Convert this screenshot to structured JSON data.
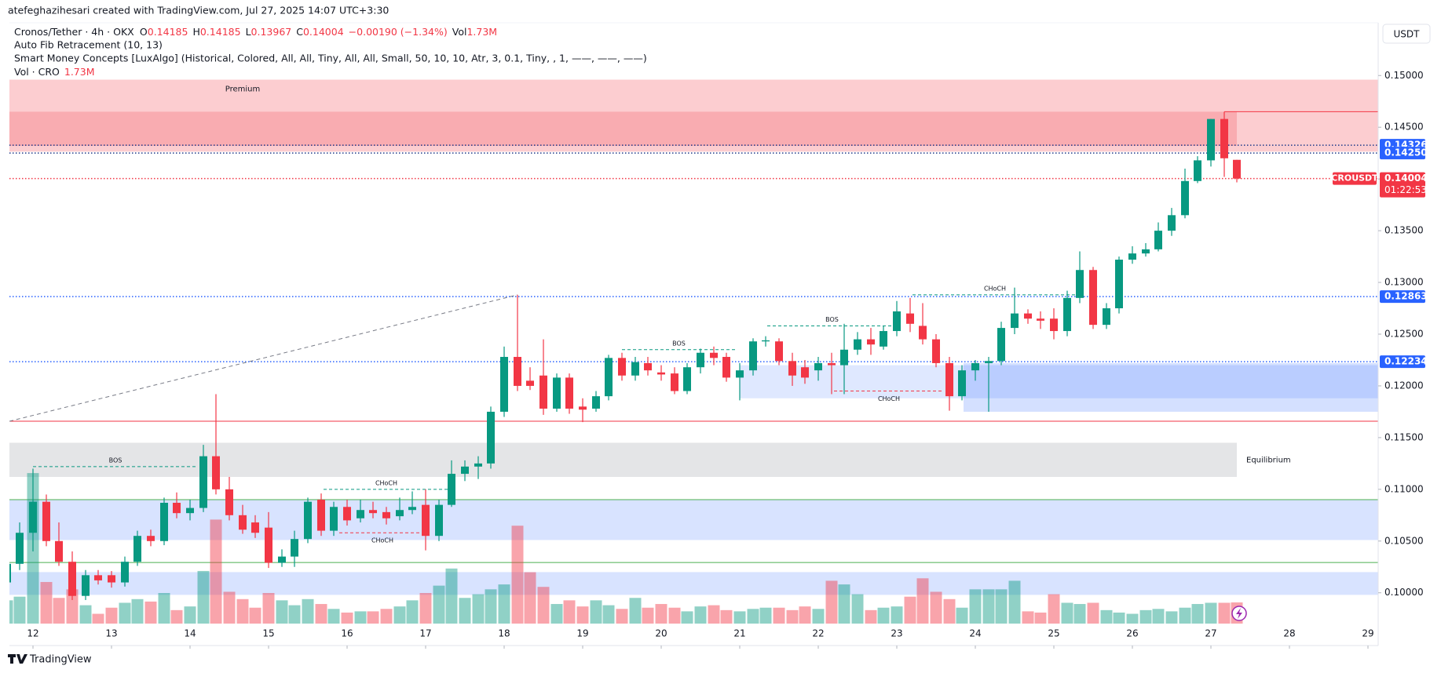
{
  "chart_data": {
    "type": "candlestick",
    "header": {
      "credit": "atefeghazihesari created with TradingView.com, Jul 27, 2025 14:07 UTC+3:30",
      "symbol": "Cronos/Tether · 4h · OKX",
      "ohlc": [
        {
          "label": "O",
          "value": 0.14185
        },
        {
          "label": "H",
          "value": 0.14185
        },
        {
          "label": "L",
          "value": 0.13967
        },
        {
          "label": "C",
          "value": 0.14004
        }
      ],
      "change": "−0.00190 (−1.34%)",
      "volume": {
        "label": "Vol",
        "value": "1.73M"
      },
      "indicators": [
        "Auto Fib Retracement (10, 13)",
        "Smart Money Concepts [LuxAlgo] (Historical, Colored, All, All, Tiny, All, All, Small, 50, 10, 10, Atr, 3, 0.1, Tiny, , 1, ——, ——, ——)"
      ],
      "volume_indicator": {
        "label": "Vol · CRO",
        "value": "1.73M"
      },
      "currency_button": "USDT",
      "brand": "TradingView"
    },
    "up_color": "#089981",
    "down_color": "#f23645",
    "xlim": [
      11.7,
      29.13
    ],
    "ylim": [
      0.0949,
      0.1551
    ],
    "xticks": [
      12,
      13,
      14,
      15,
      16,
      17,
      18,
      19,
      20,
      21,
      22,
      23,
      24,
      25,
      26,
      27,
      28,
      29
    ],
    "yticks": [
      {
        "value": 0.1,
        "label": "0.10000"
      },
      {
        "value": 0.105,
        "label": "0.10500"
      },
      {
        "value": 0.11,
        "label": "0.11000"
      },
      {
        "value": 0.115,
        "label": "0.11500"
      },
      {
        "value": 0.12,
        "label": "0.12000"
      },
      {
        "value": 0.125,
        "label": "0.12500"
      },
      {
        "value": 0.13,
        "label": "0.13000"
      },
      {
        "value": 0.135,
        "label": "0.13500"
      },
      {
        "value": 0.14,
        "label": "0.14000"
      },
      {
        "value": 0.145,
        "label": "0.14500"
      },
      {
        "value": 0.15,
        "label": "0.15000"
      }
    ],
    "price_labels": [
      {
        "value": 0.14326,
        "label": "0.14326",
        "color": "#2962ff"
      },
      {
        "value": 0.1425,
        "label": "0.14250",
        "color": "#2962ff"
      },
      {
        "value": 0.12863,
        "label": "0.12863",
        "color": "#2962ff"
      },
      {
        "value": 0.12234,
        "label": "0.12234",
        "color": "#2962ff"
      }
    ],
    "current": {
      "symbol": "CROUSDT",
      "value": 0.14004,
      "label": "0.14004",
      "countdown": "01:22:53",
      "color": "#f23645"
    },
    "zones": [
      {
        "t0": 11.7,
        "t1": 29.13,
        "top": 0.1496,
        "bottom": 0.14264,
        "color": "rgba(242,54,69,0.25)",
        "label": "Premium"
      },
      {
        "t0": 11.7,
        "t1": 27.33,
        "top": 0.1465,
        "bottom": 0.1432,
        "color": "rgba(242,54,69,0.22)"
      },
      {
        "t0": 11.7,
        "t1": 27.33,
        "top": 0.1145,
        "bottom": 0.1112,
        "color": "rgba(120,123,134,0.2)",
        "label": "Equilibrium"
      },
      {
        "t0": 11.7,
        "t1": 29.13,
        "top": 0.109,
        "bottom": 0.1051,
        "color": "rgba(41,98,255,0.18)"
      },
      {
        "t0": 11.7,
        "t1": 29.13,
        "top": 0.102,
        "bottom": 0.0998,
        "color": "rgba(41,98,255,0.18)"
      },
      {
        "t0": 21.0,
        "t1": 29.13,
        "top": 0.122,
        "bottom": 0.1188,
        "color": "rgba(41,98,255,0.15)"
      },
      {
        "t0": 23.85,
        "t1": 29.13,
        "top": 0.1222,
        "bottom": 0.1175,
        "color": "rgba(41,98,255,0.2)"
      }
    ],
    "levels": [
      {
        "price": 0.11658,
        "color": "#f23645",
        "style": "solid"
      },
      {
        "price": 0.109,
        "color": "#4caf50",
        "style": "solid"
      },
      {
        "price": 0.10293,
        "color": "#4caf50",
        "style": "solid"
      },
      {
        "price": 0.12863,
        "color": "#2962ff",
        "style": "dotted"
      },
      {
        "price": 0.12234,
        "color": "#2962ff",
        "style": "dotted"
      },
      {
        "price": 0.14004,
        "color": "#f23645",
        "style": "dotted"
      },
      {
        "price": 0.14326,
        "color": "#1e3a8a",
        "style": "dotted"
      },
      {
        "price": 0.1425,
        "color": "#1e3a8a",
        "style": "dotted"
      },
      {
        "price": 0.1465,
        "color": "#f23645",
        "style": "solid",
        "t0": 27.17
      }
    ],
    "fib_line": {
      "t0": 11.7,
      "p0": 0.11658,
      "t1": 18.17,
      "p1": 0.1288
    },
    "structures": [
      {
        "label": "BOS",
        "t0": 12.0,
        "t1": 14.1,
        "price": 0.1122,
        "color": "#089981"
      },
      {
        "label": "CHoCH",
        "t0": 15.7,
        "t1": 17.3,
        "price": 0.11,
        "color": "#089981"
      },
      {
        "label": "CHoCH",
        "t0": 15.9,
        "t1": 17.0,
        "price": 0.1058,
        "color": "#f23645"
      },
      {
        "label": "BOS",
        "t0": 19.5,
        "t1": 20.95,
        "price": 0.1235,
        "color": "#089981"
      },
      {
        "label": "BOS",
        "t0": 21.35,
        "t1": 23.0,
        "price": 0.1258,
        "color": "#089981"
      },
      {
        "label": "CHoCH",
        "t0": 22.2,
        "t1": 23.6,
        "price": 0.1195,
        "color": "#f23645"
      },
      {
        "label": "CHoCH",
        "t0": 23.2,
        "t1": 25.3,
        "price": 0.1288,
        "color": "#089981"
      }
    ],
    "candles": [
      {
        "t": 11.67,
        "o": 0.101,
        "h": 0.1032,
        "l": 0.1005,
        "c": 0.1028,
        "v": 1.9
      },
      {
        "t": 11.83,
        "o": 0.1028,
        "h": 0.1068,
        "l": 0.1022,
        "c": 0.1058,
        "v": 2.2
      },
      {
        "t": 12.0,
        "o": 0.1058,
        "h": 0.112,
        "l": 0.104,
        "c": 0.1088,
        "v": 12.3
      },
      {
        "t": 12.17,
        "o": 0.1088,
        "h": 0.1095,
        "l": 0.1045,
        "c": 0.105,
        "v": 3.4
      },
      {
        "t": 12.33,
        "o": 0.105,
        "h": 0.1068,
        "l": 0.1026,
        "c": 0.103,
        "v": 2.1
      },
      {
        "t": 12.5,
        "o": 0.103,
        "h": 0.104,
        "l": 0.0993,
        "c": 0.0997,
        "v": 2.8
      },
      {
        "t": 12.67,
        "o": 0.0997,
        "h": 0.1022,
        "l": 0.0993,
        "c": 0.1017,
        "v": 1.5
      },
      {
        "t": 12.83,
        "o": 0.1017,
        "h": 0.1022,
        "l": 0.1008,
        "c": 0.1012,
        "v": 0.8
      },
      {
        "t": 13.0,
        "o": 0.1017,
        "h": 0.1021,
        "l": 0.1005,
        "c": 0.101,
        "v": 1.3
      },
      {
        "t": 13.17,
        "o": 0.101,
        "h": 0.1035,
        "l": 0.1006,
        "c": 0.103,
        "v": 1.7
      },
      {
        "t": 13.33,
        "o": 0.103,
        "h": 0.106,
        "l": 0.1026,
        "c": 0.1055,
        "v": 2.0
      },
      {
        "t": 13.5,
        "o": 0.1055,
        "h": 0.1061,
        "l": 0.1045,
        "c": 0.105,
        "v": 1.8
      },
      {
        "t": 13.67,
        "o": 0.105,
        "h": 0.1092,
        "l": 0.1046,
        "c": 0.1087,
        "v": 2.5
      },
      {
        "t": 13.83,
        "o": 0.1087,
        "h": 0.1097,
        "l": 0.1072,
        "c": 0.1077,
        "v": 1.1
      },
      {
        "t": 14.0,
        "o": 0.1077,
        "h": 0.109,
        "l": 0.107,
        "c": 0.1082,
        "v": 1.4
      },
      {
        "t": 14.17,
        "o": 0.1082,
        "h": 0.1143,
        "l": 0.1078,
        "c": 0.1132,
        "v": 4.3
      },
      {
        "t": 14.33,
        "o": 0.1132,
        "h": 0.1192,
        "l": 0.1095,
        "c": 0.11,
        "v": 8.5
      },
      {
        "t": 14.5,
        "o": 0.11,
        "h": 0.1112,
        "l": 0.107,
        "c": 0.1075,
        "v": 2.6
      },
      {
        "t": 14.67,
        "o": 0.1075,
        "h": 0.1085,
        "l": 0.1057,
        "c": 0.1061,
        "v": 2.0
      },
      {
        "t": 14.83,
        "o": 0.1068,
        "h": 0.1075,
        "l": 0.1053,
        "c": 0.1058,
        "v": 1.3
      },
      {
        "t": 15.0,
        "o": 0.1063,
        "h": 0.1078,
        "l": 0.1024,
        "c": 0.1029,
        "v": 2.5
      },
      {
        "t": 15.17,
        "o": 0.1029,
        "h": 0.1042,
        "l": 0.1025,
        "c": 0.1035,
        "v": 1.9
      },
      {
        "t": 15.33,
        "o": 0.1035,
        "h": 0.106,
        "l": 0.1025,
        "c": 0.1052,
        "v": 1.5
      },
      {
        "t": 15.5,
        "o": 0.1052,
        "h": 0.1092,
        "l": 0.1048,
        "c": 0.1088,
        "v": 2.0
      },
      {
        "t": 15.67,
        "o": 0.109,
        "h": 0.1096,
        "l": 0.1055,
        "c": 0.106,
        "v": 1.6
      },
      {
        "t": 15.83,
        "o": 0.106,
        "h": 0.1088,
        "l": 0.1055,
        "c": 0.1083,
        "v": 1.2
      },
      {
        "t": 16.0,
        "o": 0.1083,
        "h": 0.109,
        "l": 0.1065,
        "c": 0.107,
        "v": 0.9
      },
      {
        "t": 16.17,
        "o": 0.1072,
        "h": 0.109,
        "l": 0.1068,
        "c": 0.108,
        "v": 1.0
      },
      {
        "t": 16.33,
        "o": 0.108,
        "h": 0.1088,
        "l": 0.1072,
        "c": 0.1077,
        "v": 1.0
      },
      {
        "t": 16.5,
        "o": 0.1078,
        "h": 0.1083,
        "l": 0.1066,
        "c": 0.1072,
        "v": 1.2
      },
      {
        "t": 16.67,
        "o": 0.1074,
        "h": 0.1092,
        "l": 0.107,
        "c": 0.108,
        "v": 1.4
      },
      {
        "t": 16.83,
        "o": 0.108,
        "h": 0.1098,
        "l": 0.1076,
        "c": 0.1083,
        "v": 1.9
      },
      {
        "t": 17.0,
        "o": 0.1085,
        "h": 0.11,
        "l": 0.1041,
        "c": 0.1055,
        "v": 2.5
      },
      {
        "t": 17.17,
        "o": 0.1055,
        "h": 0.109,
        "l": 0.105,
        "c": 0.1085,
        "v": 3.1
      },
      {
        "t": 17.33,
        "o": 0.1085,
        "h": 0.1128,
        "l": 0.1083,
        "c": 0.1115,
        "v": 4.5
      },
      {
        "t": 17.5,
        "o": 0.1115,
        "h": 0.1128,
        "l": 0.1108,
        "c": 0.1122,
        "v": 2.1
      },
      {
        "t": 17.67,
        "o": 0.1122,
        "h": 0.1132,
        "l": 0.111,
        "c": 0.1125,
        "v": 2.4
      },
      {
        "t": 17.83,
        "o": 0.1125,
        "h": 0.118,
        "l": 0.112,
        "c": 0.1175,
        "v": 2.8
      },
      {
        "t": 18.0,
        "o": 0.1175,
        "h": 0.1238,
        "l": 0.117,
        "c": 0.1228,
        "v": 3.2
      },
      {
        "t": 18.17,
        "o": 0.1228,
        "h": 0.1288,
        "l": 0.1195,
        "c": 0.12,
        "v": 8.0
      },
      {
        "t": 18.33,
        "o": 0.1205,
        "h": 0.1218,
        "l": 0.1196,
        "c": 0.12,
        "v": 4.2
      },
      {
        "t": 18.5,
        "o": 0.121,
        "h": 0.1245,
        "l": 0.1172,
        "c": 0.1178,
        "v": 3.0
      },
      {
        "t": 18.67,
        "o": 0.1178,
        "h": 0.1212,
        "l": 0.1175,
        "c": 0.1208,
        "v": 1.6
      },
      {
        "t": 18.83,
        "o": 0.1208,
        "h": 0.1212,
        "l": 0.1173,
        "c": 0.1178,
        "v": 1.9
      },
      {
        "t": 19.0,
        "o": 0.118,
        "h": 0.1188,
        "l": 0.1165,
        "c": 0.1177,
        "v": 1.4
      },
      {
        "t": 19.17,
        "o": 0.1178,
        "h": 0.1195,
        "l": 0.1175,
        "c": 0.119,
        "v": 1.9
      },
      {
        "t": 19.33,
        "o": 0.119,
        "h": 0.123,
        "l": 0.1186,
        "c": 0.1227,
        "v": 1.5
      },
      {
        "t": 19.5,
        "o": 0.1227,
        "h": 0.1232,
        "l": 0.1205,
        "c": 0.121,
        "v": 1.2
      },
      {
        "t": 19.67,
        "o": 0.121,
        "h": 0.1228,
        "l": 0.1205,
        "c": 0.1223,
        "v": 2.1
      },
      {
        "t": 19.83,
        "o": 0.1222,
        "h": 0.1228,
        "l": 0.121,
        "c": 0.1215,
        "v": 1.3
      },
      {
        "t": 20.0,
        "o": 0.1213,
        "h": 0.122,
        "l": 0.1205,
        "c": 0.1211,
        "v": 1.6
      },
      {
        "t": 20.17,
        "o": 0.1212,
        "h": 0.1218,
        "l": 0.1192,
        "c": 0.1195,
        "v": 1.3
      },
      {
        "t": 20.33,
        "o": 0.1195,
        "h": 0.1222,
        "l": 0.1192,
        "c": 0.1218,
        "v": 1.0
      },
      {
        "t": 20.5,
        "o": 0.1218,
        "h": 0.1236,
        "l": 0.1212,
        "c": 0.1232,
        "v": 1.4
      },
      {
        "t": 20.67,
        "o": 0.1232,
        "h": 0.1238,
        "l": 0.122,
        "c": 0.1227,
        "v": 1.5
      },
      {
        "t": 20.83,
        "o": 0.1228,
        "h": 0.1232,
        "l": 0.1204,
        "c": 0.1208,
        "v": 1.1
      },
      {
        "t": 21.0,
        "o": 0.1208,
        "h": 0.1222,
        "l": 0.1186,
        "c": 0.1215,
        "v": 1.0
      },
      {
        "t": 21.17,
        "o": 0.1215,
        "h": 0.1246,
        "l": 0.121,
        "c": 0.1243,
        "v": 1.2
      },
      {
        "t": 21.33,
        "o": 0.1243,
        "h": 0.1248,
        "l": 0.1238,
        "c": 0.1244,
        "v": 1.3
      },
      {
        "t": 21.5,
        "o": 0.1243,
        "h": 0.1246,
        "l": 0.122,
        "c": 0.1224,
        "v": 1.3
      },
      {
        "t": 21.67,
        "o": 0.1224,
        "h": 0.1232,
        "l": 0.12,
        "c": 0.121,
        "v": 1.1
      },
      {
        "t": 21.83,
        "o": 0.1218,
        "h": 0.1225,
        "l": 0.1202,
        "c": 0.1208,
        "v": 1.4
      },
      {
        "t": 22.0,
        "o": 0.1215,
        "h": 0.1228,
        "l": 0.1205,
        "c": 0.1222,
        "v": 1.2
      },
      {
        "t": 22.17,
        "o": 0.1222,
        "h": 0.1232,
        "l": 0.1192,
        "c": 0.122,
        "v": 3.5
      },
      {
        "t": 22.33,
        "o": 0.122,
        "h": 0.126,
        "l": 0.1192,
        "c": 0.1235,
        "v": 3.2
      },
      {
        "t": 22.5,
        "o": 0.1235,
        "h": 0.1252,
        "l": 0.123,
        "c": 0.1245,
        "v": 2.4
      },
      {
        "t": 22.67,
        "o": 0.1245,
        "h": 0.1256,
        "l": 0.123,
        "c": 0.124,
        "v": 1.1
      },
      {
        "t": 22.83,
        "o": 0.1238,
        "h": 0.1258,
        "l": 0.1235,
        "c": 0.1253,
        "v": 1.3
      },
      {
        "t": 23.0,
        "o": 0.1253,
        "h": 0.1282,
        "l": 0.1248,
        "c": 0.1272,
        "v": 1.4
      },
      {
        "t": 23.17,
        "o": 0.127,
        "h": 0.1285,
        "l": 0.1252,
        "c": 0.126,
        "v": 2.2
      },
      {
        "t": 23.33,
        "o": 0.1258,
        "h": 0.128,
        "l": 0.124,
        "c": 0.1245,
        "v": 3.7
      },
      {
        "t": 23.5,
        "o": 0.1245,
        "h": 0.125,
        "l": 0.1218,
        "c": 0.1222,
        "v": 2.6
      },
      {
        "t": 23.67,
        "o": 0.1222,
        "h": 0.1228,
        "l": 0.1176,
        "c": 0.119,
        "v": 2.0
      },
      {
        "t": 23.83,
        "o": 0.119,
        "h": 0.122,
        "l": 0.1186,
        "c": 0.1215,
        "v": 1.3
      },
      {
        "t": 24.0,
        "o": 0.1215,
        "h": 0.1225,
        "l": 0.1205,
        "c": 0.1222,
        "v": 2.8
      },
      {
        "t": 24.17,
        "o": 0.1222,
        "h": 0.1228,
        "l": 0.1175,
        "c": 0.1224,
        "v": 2.8
      },
      {
        "t": 24.33,
        "o": 0.1224,
        "h": 0.1262,
        "l": 0.122,
        "c": 0.1256,
        "v": 2.8
      },
      {
        "t": 24.5,
        "o": 0.1256,
        "h": 0.1295,
        "l": 0.125,
        "c": 0.127,
        "v": 3.5
      },
      {
        "t": 24.67,
        "o": 0.127,
        "h": 0.1274,
        "l": 0.126,
        "c": 0.1265,
        "v": 1.0
      },
      {
        "t": 24.83,
        "o": 0.1265,
        "h": 0.1272,
        "l": 0.1255,
        "c": 0.1263,
        "v": 0.9
      },
      {
        "t": 25.0,
        "o": 0.1265,
        "h": 0.1275,
        "l": 0.1245,
        "c": 0.1253,
        "v": 2.4
      },
      {
        "t": 25.17,
        "o": 0.1253,
        "h": 0.1292,
        "l": 0.1248,
        "c": 0.1285,
        "v": 1.7
      },
      {
        "t": 25.33,
        "o": 0.1285,
        "h": 0.133,
        "l": 0.128,
        "c": 0.1312,
        "v": 1.6
      },
      {
        "t": 25.5,
        "o": 0.1312,
        "h": 0.1315,
        "l": 0.1255,
        "c": 0.1259,
        "v": 1.7
      },
      {
        "t": 25.67,
        "o": 0.1259,
        "h": 0.128,
        "l": 0.1255,
        "c": 0.1275,
        "v": 1.1
      },
      {
        "t": 25.83,
        "o": 0.1275,
        "h": 0.1325,
        "l": 0.127,
        "c": 0.1322,
        "v": 0.9
      },
      {
        "t": 26.0,
        "o": 0.1322,
        "h": 0.1335,
        "l": 0.1318,
        "c": 0.1328,
        "v": 0.8
      },
      {
        "t": 26.17,
        "o": 0.1328,
        "h": 0.1338,
        "l": 0.1325,
        "c": 0.1332,
        "v": 1.1
      },
      {
        "t": 26.33,
        "o": 0.1332,
        "h": 0.1358,
        "l": 0.133,
        "c": 0.135,
        "v": 1.2
      },
      {
        "t": 26.5,
        "o": 0.135,
        "h": 0.1372,
        "l": 0.1345,
        "c": 0.1365,
        "v": 1.0
      },
      {
        "t": 26.67,
        "o": 0.1365,
        "h": 0.141,
        "l": 0.1362,
        "c": 0.1398,
        "v": 1.3
      },
      {
        "t": 26.83,
        "o": 0.1398,
        "h": 0.1422,
        "l": 0.1396,
        "c": 0.1418,
        "v": 1.6
      },
      {
        "t": 27.0,
        "o": 0.1418,
        "h": 0.1458,
        "l": 0.1412,
        "c": 0.1458,
        "v": 1.7
      },
      {
        "t": 27.17,
        "o": 0.1458,
        "h": 0.1465,
        "l": 0.1402,
        "c": 0.142,
        "v": 1.7
      },
      {
        "t": 27.33,
        "o": 0.14185,
        "h": 0.14185,
        "l": 0.13967,
        "c": 0.14004,
        "v": 1.73
      }
    ]
  }
}
